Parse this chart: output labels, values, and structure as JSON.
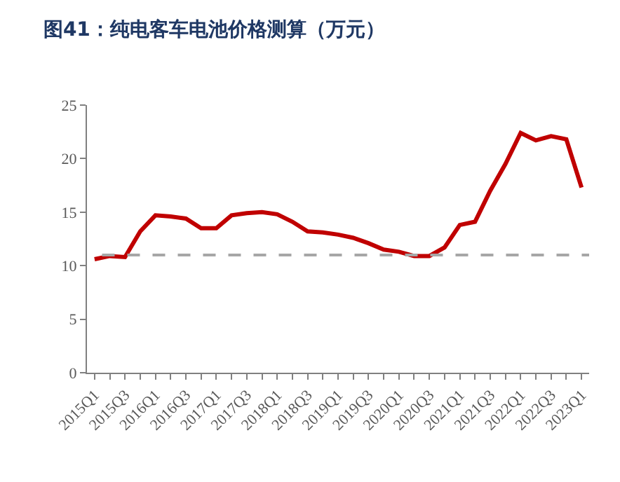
{
  "chart_data": {
    "type": "line",
    "title": "图41：纯电客车电池价格测算（万元）",
    "categories": [
      "2015Q1",
      null,
      "2015Q3",
      null,
      "2016Q1",
      null,
      "2016Q3",
      null,
      "2017Q1",
      null,
      "2017Q3",
      null,
      "2018Q1",
      null,
      "2018Q3",
      null,
      "2019Q1",
      null,
      "2019Q3",
      null,
      "2020Q1",
      null,
      "2020Q3",
      null,
      "2021Q1",
      null,
      "2021Q3",
      null,
      "2022Q1",
      null,
      "2022Q3",
      null,
      "2023Q1"
    ],
    "series": [
      {
        "color": "#c00000",
        "values": [
          10.6,
          10.9,
          10.8,
          13.2,
          14.7,
          14.6,
          14.4,
          13.5,
          13.5,
          14.7,
          14.9,
          15.0,
          14.8,
          14.1,
          13.2,
          13.1,
          12.9,
          12.6,
          12.1,
          11.5,
          11.3,
          10.9,
          10.9,
          11.7,
          13.8,
          14.1,
          17.0,
          19.5,
          22.4,
          21.7,
          22.1,
          21.8,
          17.3
        ]
      }
    ],
    "ylim": [
      0,
      25
    ],
    "yticks": [
      0,
      5,
      10,
      15,
      20,
      25
    ],
    "ref_lines": [
      {
        "axis": "y",
        "value": 11,
        "color": "#a6a6a6",
        "line_style": "dashed"
      }
    ],
    "marker": "none",
    "line_style": "solid"
  }
}
